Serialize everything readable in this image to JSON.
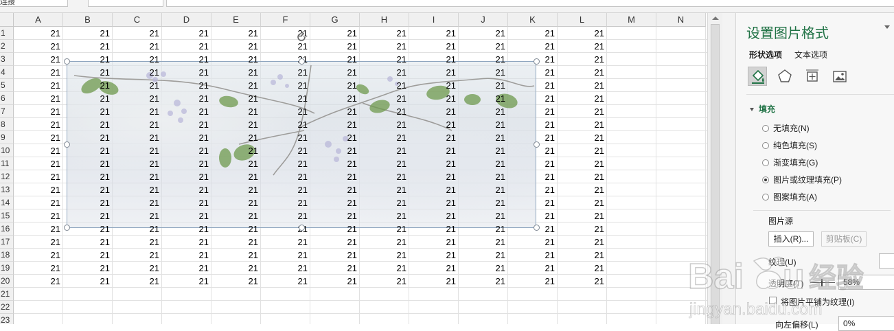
{
  "topbar": {
    "namebox": "连接",
    "formula": ""
  },
  "columns": [
    "A",
    "B",
    "C",
    "D",
    "E",
    "F",
    "G",
    "H",
    "I",
    "J",
    "K",
    "L",
    "M",
    "N"
  ],
  "rows": [
    "1",
    "2",
    "3",
    "4",
    "5",
    "6",
    "7",
    "8",
    "9",
    "10",
    "11",
    "12",
    "13",
    "14",
    "15",
    "16",
    "17",
    "18",
    "19",
    "20",
    "21",
    "22",
    "23"
  ],
  "cell_value": "21",
  "filled_columns": [
    "A",
    "B",
    "C",
    "D",
    "E",
    "F",
    "G",
    "H",
    "I",
    "J",
    "K",
    "L"
  ],
  "filled_row_count": 20,
  "panel": {
    "title": "设置图片格式",
    "tabs": [
      "形状选项",
      "文本选项"
    ],
    "icons": [
      "fill-line-icon",
      "effects-pentagon-icon",
      "size-properties-icon",
      "picture-icon"
    ],
    "section": "填充",
    "fill_options": [
      {
        "label": "无填充(N)",
        "selected": false
      },
      {
        "label": "纯色填充(S)",
        "selected": false
      },
      {
        "label": "渐变填充(G)",
        "selected": false
      },
      {
        "label": "图片或纹理填充(P)",
        "selected": true
      },
      {
        "label": "图案填充(A)",
        "selected": false
      }
    ],
    "picture_source": "图片源",
    "insert_button": "插入(R)...",
    "clipboard_button": "剪贴板(C)",
    "texture_label": "纹理(U)",
    "transparency_label": "透明度(T)",
    "transparency_value": "58%",
    "transparency_percent": 58,
    "tile_label": "将图片平铺为纹理(I)",
    "offset_label": "向左偏移(L)",
    "offset_value": "0%"
  },
  "watermark": {
    "brand": "Baidu经验",
    "url": "jingyan.baidu.com"
  },
  "colors": {
    "accent": "#217346",
    "picture_border": "#8fa6bf"
  }
}
